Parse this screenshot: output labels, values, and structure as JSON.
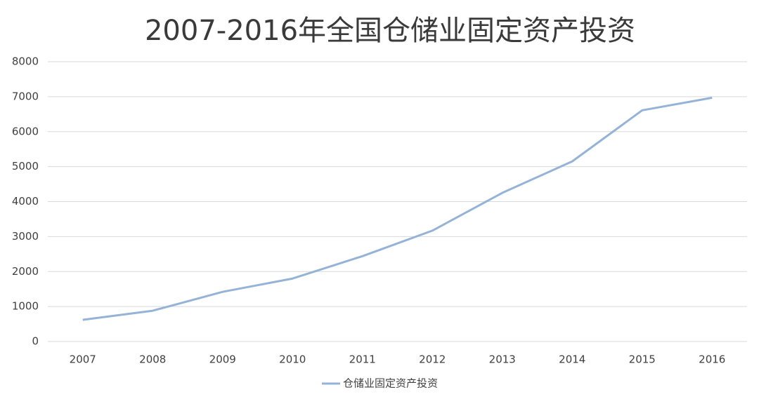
{
  "chart_data": {
    "type": "line",
    "title": "2007-2016年全国仓储业固定资产投资",
    "categories": [
      "2007",
      "2008",
      "2009",
      "2010",
      "2011",
      "2012",
      "2013",
      "2014",
      "2015",
      "2016"
    ],
    "series": [
      {
        "name": "仓储业固定资产投资",
        "color": "#95b3d7",
        "values": [
          620,
          880,
          1420,
          1800,
          2440,
          3170,
          4250,
          5150,
          6610,
          6970
        ]
      }
    ],
    "ylim": [
      0,
      8000
    ],
    "yticks": [
      0,
      1000,
      2000,
      3000,
      4000,
      5000,
      6000,
      7000,
      8000
    ],
    "grid": true
  }
}
